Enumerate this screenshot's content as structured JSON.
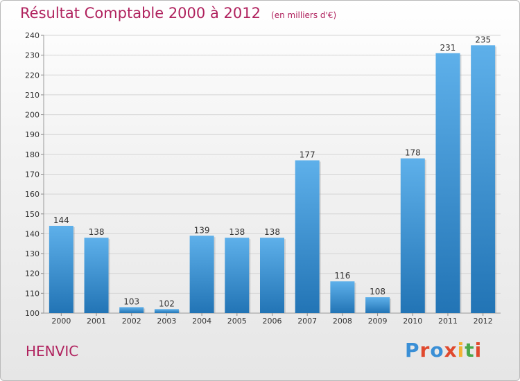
{
  "header": {
    "title": "Résultat Comptable 2000 à 2012",
    "subtitle": "(en milliers d'€)"
  },
  "footer": {
    "commune": "HENVIC",
    "brand": "Proxiti",
    "brand_letters": [
      {
        "char": "P",
        "color": "#3a8fd6"
      },
      {
        "char": "r",
        "color": "#e0492e"
      },
      {
        "char": "o",
        "color": "#3a8fd6"
      },
      {
        "char": "x",
        "color": "#e0492e"
      },
      {
        "char": "i",
        "color": "#f2b233"
      },
      {
        "char": "t",
        "color": "#4aa84a"
      },
      {
        "char": "i",
        "color": "#e0492e"
      }
    ]
  },
  "colors": {
    "bar_top": "#5eb0ea",
    "bar_bottom": "#2274b5",
    "accent": "#b0225e"
  },
  "chart_data": {
    "type": "bar",
    "title": "Résultat Comptable 2000 à 2012",
    "subtitle": "(en milliers d'€)",
    "categories": [
      "2000",
      "2001",
      "2002",
      "2003",
      "2004",
      "2005",
      "2006",
      "2007",
      "2008",
      "2009",
      "2010",
      "2011",
      "2012"
    ],
    "values": [
      144,
      138,
      103,
      102,
      139,
      138,
      138,
      177,
      116,
      108,
      178,
      231,
      235
    ],
    "ylim": [
      100,
      240
    ],
    "yticks": [
      100,
      110,
      120,
      130,
      140,
      150,
      160,
      170,
      180,
      190,
      200,
      210,
      220,
      230,
      240
    ],
    "grid": true,
    "legend": "none"
  }
}
